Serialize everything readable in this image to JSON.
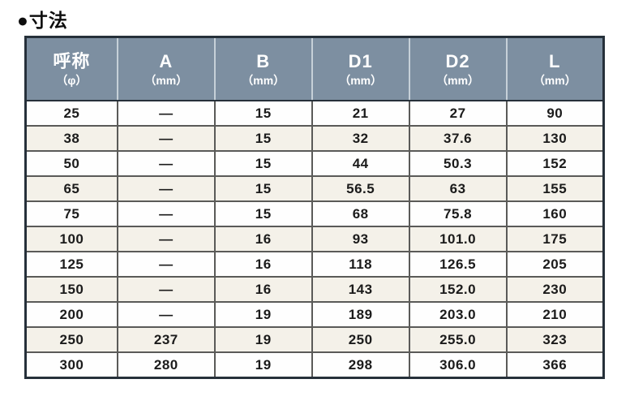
{
  "page": {
    "title": "●寸法"
  },
  "colors": {
    "header_bg": "#7d8fa1",
    "header_text": "#ffffff",
    "header_divider": "#c6d0d8",
    "outer_border": "#26303a",
    "inner_border": "#5a5a58",
    "row_bg": "#fefefe",
    "row_alt_bg": "#f4f1e9",
    "text": "#1b1b1b"
  },
  "chart_data": {
    "type": "table",
    "title": "●寸法",
    "columns": [
      {
        "label": "呼称",
        "unit": "（φ）"
      },
      {
        "label": "A",
        "unit": "（mm）"
      },
      {
        "label": "B",
        "unit": "（mm）"
      },
      {
        "label": "D1",
        "unit": "（mm）"
      },
      {
        "label": "D2",
        "unit": "（mm）"
      },
      {
        "label": "L",
        "unit": "（mm）"
      }
    ],
    "rows": [
      [
        "25",
        "—",
        "15",
        "21",
        "27",
        "90"
      ],
      [
        "38",
        "—",
        "15",
        "32",
        "37.6",
        "130"
      ],
      [
        "50",
        "—",
        "15",
        "44",
        "50.3",
        "152"
      ],
      [
        "65",
        "—",
        "15",
        "56.5",
        "63",
        "155"
      ],
      [
        "75",
        "—",
        "15",
        "68",
        "75.8",
        "160"
      ],
      [
        "100",
        "—",
        "16",
        "93",
        "101.0",
        "175"
      ],
      [
        "125",
        "—",
        "16",
        "118",
        "126.5",
        "205"
      ],
      [
        "150",
        "—",
        "16",
        "143",
        "152.0",
        "230"
      ],
      [
        "200",
        "—",
        "19",
        "189",
        "203.0",
        "210"
      ],
      [
        "250",
        "237",
        "19",
        "250",
        "255.0",
        "323"
      ],
      [
        "300",
        "280",
        "19",
        "298",
        "306.0",
        "366"
      ]
    ]
  }
}
